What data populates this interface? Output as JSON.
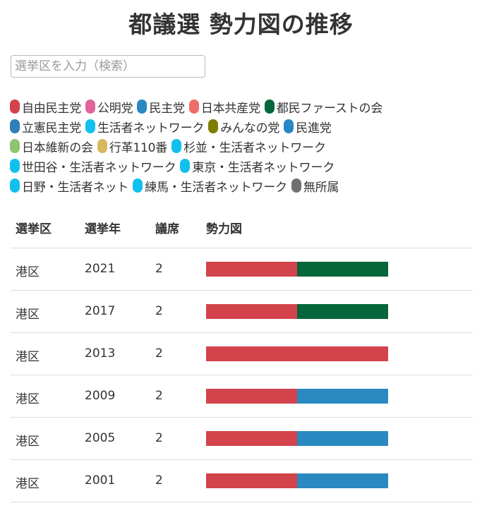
{
  "title": "都議選 勢力図の推移",
  "search": {
    "placeholder": "選挙区を入力（検索）",
    "value": ""
  },
  "legend": [
    [
      {
        "label": "自由民主党",
        "color": "#d2434b"
      },
      {
        "label": "公明党",
        "color": "#e0649a"
      },
      {
        "label": "民主党",
        "color": "#2a89c1"
      },
      {
        "label": "日本共産党",
        "color": "#ee6e6a"
      },
      {
        "label": "都民ファーストの会",
        "color": "#04663a"
      }
    ],
    [
      {
        "label": "立憲民主党",
        "color": "#2f7fba"
      },
      {
        "label": "生活者ネットワーク",
        "color": "#12c0ee"
      },
      {
        "label": "みんなの党",
        "color": "#7d7d00"
      },
      {
        "label": "民進党",
        "color": "#2b86c7"
      }
    ],
    [
      {
        "label": "日本維新の会",
        "color": "#8dc572"
      },
      {
        "label": "行革110番",
        "color": "#d7b85c"
      },
      {
        "label": "杉並・生活者ネットワーク",
        "color": "#12c0ee"
      }
    ],
    [
      {
        "label": "世田谷・生活者ネットワーク",
        "color": "#12c0ee"
      },
      {
        "label": "東京・生活者ネットワーク",
        "color": "#12c0ee"
      }
    ],
    [
      {
        "label": "日野・生活者ネット",
        "color": "#12c0ee"
      },
      {
        "label": "練馬・生活者ネットワーク",
        "color": "#12c0ee"
      },
      {
        "label": "無所属",
        "color": "#707070"
      }
    ]
  ],
  "table": {
    "headers": [
      "選挙区",
      "選挙年",
      "議席",
      "勢力図"
    ],
    "rows": [
      {
        "district": "港区",
        "year": "2021",
        "seats": "2",
        "parties": [
          {
            "party": "自由民主党",
            "seats": 1,
            "color": "#d2434b"
          },
          {
            "party": "都民ファーストの会",
            "seats": 1,
            "color": "#04663a"
          }
        ]
      },
      {
        "district": "港区",
        "year": "2017",
        "seats": "2",
        "parties": [
          {
            "party": "自由民主党",
            "seats": 1,
            "color": "#d2434b"
          },
          {
            "party": "都民ファーストの会",
            "seats": 1,
            "color": "#04663a"
          }
        ]
      },
      {
        "district": "港区",
        "year": "2013",
        "seats": "2",
        "parties": [
          {
            "party": "自由民主党",
            "seats": 2,
            "color": "#d2434b"
          }
        ]
      },
      {
        "district": "港区",
        "year": "2009",
        "seats": "2",
        "parties": [
          {
            "party": "自由民主党",
            "seats": 1,
            "color": "#d2434b"
          },
          {
            "party": "民主党",
            "seats": 1,
            "color": "#2a89c1"
          }
        ]
      },
      {
        "district": "港区",
        "year": "2005",
        "seats": "2",
        "parties": [
          {
            "party": "自由民主党",
            "seats": 1,
            "color": "#d2434b"
          },
          {
            "party": "民主党",
            "seats": 1,
            "color": "#2a89c1"
          }
        ]
      },
      {
        "district": "港区",
        "year": "2001",
        "seats": "2",
        "parties": [
          {
            "party": "自由民主党",
            "seats": 1,
            "color": "#d2434b"
          },
          {
            "party": "民主党",
            "seats": 1,
            "color": "#2a89c1"
          }
        ]
      }
    ]
  }
}
